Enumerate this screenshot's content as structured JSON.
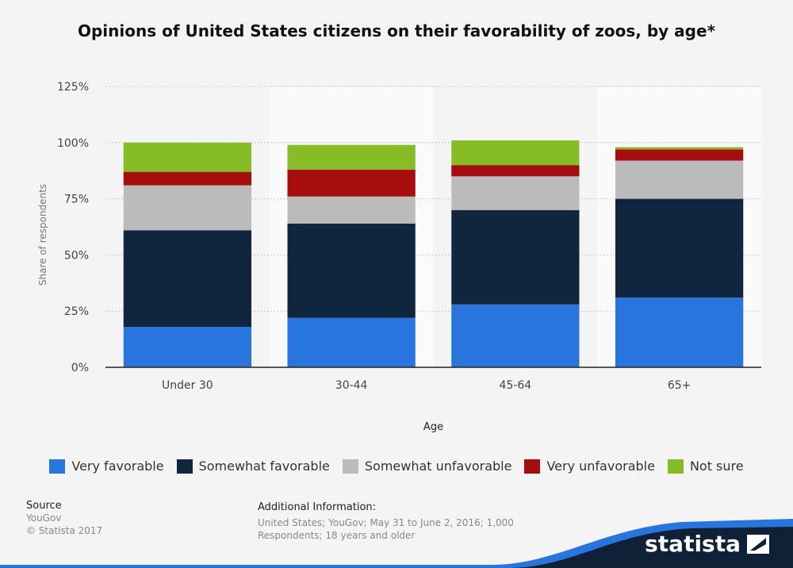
{
  "title": "Opinions of United States citizens on their favorability of zoos, by age*",
  "chart_data": {
    "type": "bar",
    "stacked": true,
    "categories": [
      "Under 30",
      "30-44",
      "45-64",
      "65+"
    ],
    "series": [
      {
        "name": "Very favorable",
        "color": "#2876dd",
        "values": [
          18,
          22,
          28,
          31
        ]
      },
      {
        "name": "Somewhat favorable",
        "color": "#10263e",
        "values": [
          43,
          42,
          42,
          44
        ]
      },
      {
        "name": "Somewhat unfavorable",
        "color": "#bbbbbb",
        "values": [
          20,
          12,
          15,
          17
        ]
      },
      {
        "name": "Very unfavorable",
        "color": "#a60e0e",
        "values": [
          6,
          12,
          5,
          5
        ]
      },
      {
        "name": "Not sure",
        "color": "#86bc25",
        "values": [
          13,
          11,
          11,
          1
        ]
      }
    ],
    "xlabel": "Age",
    "ylabel": "Share of respondents",
    "ylim": [
      0,
      125
    ],
    "yticks": [
      "0%",
      "25%",
      "50%",
      "75%",
      "100%",
      "125%"
    ],
    "ytick_values": [
      0,
      25,
      50,
      75,
      100,
      125
    ],
    "grid": true,
    "legend": "bottom"
  },
  "source": {
    "heading": "Source",
    "name": "YouGov",
    "copyright": "© Statista 2017"
  },
  "additional": {
    "heading": "Additional Information:",
    "text": "United States; YouGov; May 31 to June 2, 2016; 1,000 Respondents; 18 years and older"
  },
  "brand": {
    "name": "statista"
  }
}
